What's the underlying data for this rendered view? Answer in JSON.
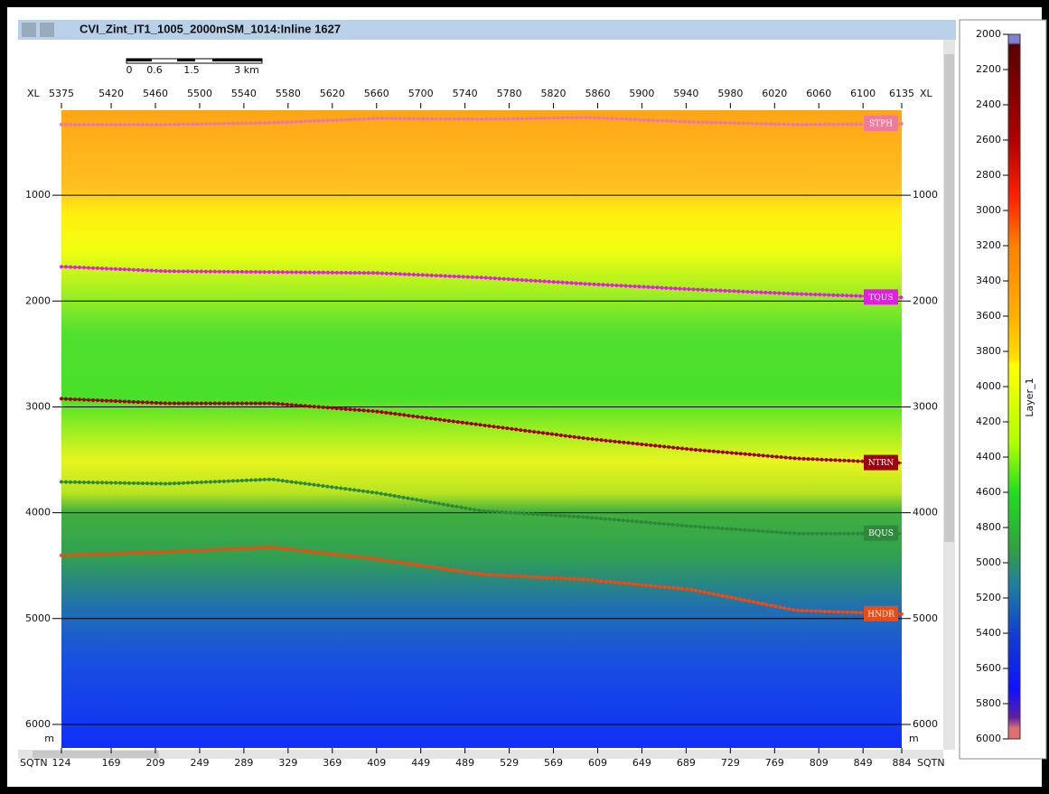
{
  "window": {
    "title": "CVI_Zint_IT1_1005_2000mSM_1014:Inline 1627"
  },
  "scale_bar": {
    "labels": [
      "0",
      "0.6",
      "1.5",
      "3 km"
    ]
  },
  "section": {
    "xl_label": "XL",
    "xlim": [
      5375,
      6135
    ],
    "xl_ticks": [
      5375,
      5420,
      5460,
      5500,
      5540,
      5580,
      5620,
      5660,
      5700,
      5740,
      5780,
      5820,
      5860,
      5900,
      5940,
      5980,
      6020,
      6060,
      6100,
      6135
    ],
    "sqtn_label": "SQTN",
    "sqtn_lim": [
      124,
      884
    ],
    "sqtn_ticks": [
      124,
      169,
      209,
      249,
      289,
      329,
      369,
      409,
      449,
      489,
      529,
      569,
      609,
      649,
      689,
      729,
      769,
      809,
      849,
      884
    ],
    "depth_unit": "m",
    "depth_lim": [
      197,
      6222
    ],
    "depth_ticks": [
      1000,
      2000,
      3000,
      4000,
      5000,
      6000
    ],
    "horizons": [
      {
        "name": "STPH",
        "color": "#f07a9a",
        "xl": [
          5375,
          5470,
          5565,
          5660,
          5755,
          5850,
          5945,
          6040,
          6135
        ],
        "depth": [
          333,
          333,
          316,
          274,
          282,
          265,
          308,
          333,
          325
        ]
      },
      {
        "name": "TQUS",
        "color": "#e020e0",
        "xl": [
          5375,
          5470,
          5565,
          5660,
          5755,
          5850,
          5945,
          6040,
          6135
        ],
        "depth": [
          1675,
          1718,
          1726,
          1735,
          1778,
          1838,
          1889,
          1932,
          1966
        ]
      },
      {
        "name": "NTRN",
        "color": "#a00010",
        "xl": [
          5375,
          5470,
          5565,
          5660,
          5755,
          5850,
          5945,
          6040,
          6135
        ],
        "depth": [
          2923,
          2966,
          2966,
          3043,
          3171,
          3299,
          3402,
          3487,
          3530
        ]
      },
      {
        "name": "BQUS",
        "color": "#2e8a3a",
        "xl": [
          5375,
          5470,
          5565,
          5660,
          5755,
          5850,
          5945,
          6040,
          6135
        ],
        "depth": [
          3709,
          3726,
          3684,
          3812,
          3983,
          4043,
          4128,
          4197,
          4197
        ]
      },
      {
        "name": "HNDR",
        "color": "#f04a10",
        "xl": [
          5375,
          5470,
          5565,
          5660,
          5755,
          5850,
          5945,
          6040,
          6135
        ],
        "depth": [
          4402,
          4368,
          4325,
          4436,
          4581,
          4632,
          4726,
          4923,
          4957
        ]
      }
    ]
  },
  "colorbar": {
    "label": "Layer_1",
    "lim": [
      2000,
      6000
    ],
    "ticks": [
      2000,
      2200,
      2400,
      2600,
      2800,
      3000,
      3200,
      3400,
      3600,
      3800,
      4000,
      4200,
      4400,
      4600,
      4800,
      5000,
      5200,
      5400,
      5600,
      5800,
      6000
    ]
  }
}
